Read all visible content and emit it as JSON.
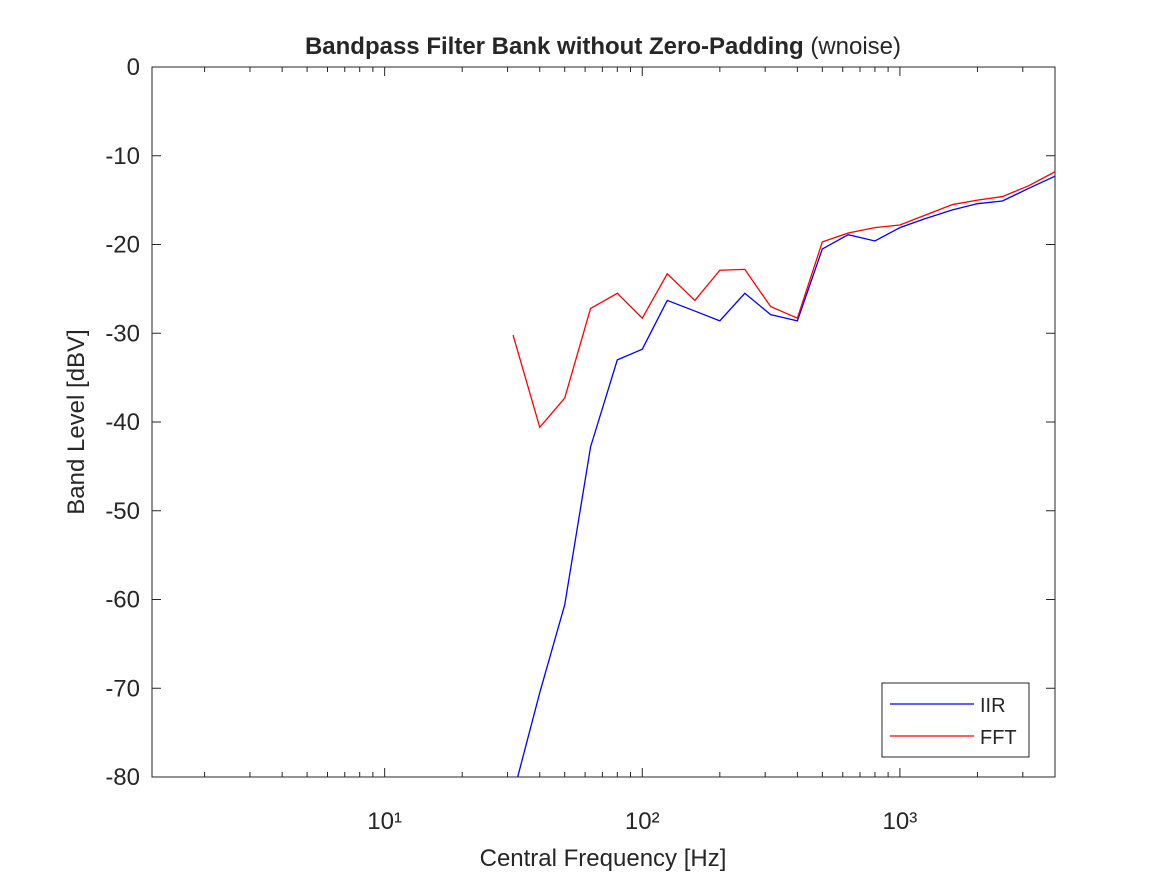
{
  "chart_data": {
    "type": "line",
    "title": "Bandpass Filter Bank without Zero-Padding",
    "title_note": "(wnoise)",
    "xlabel": "Central Frequency [Hz]",
    "ylabel": "Band Level [dBV]",
    "xscale": "log",
    "x_minor_ticks": true,
    "xlim": [
      1.25,
      4000
    ],
    "ylim": [
      -80,
      0
    ],
    "xticks": [
      {
        "value": 10,
        "label": "10¹"
      },
      {
        "value": 100,
        "label": "10²"
      },
      {
        "value": 1000,
        "label": "10³"
      }
    ],
    "yticks": [
      -80,
      -70,
      -60,
      -50,
      -40,
      -30,
      -20,
      -10,
      0
    ],
    "grid": false,
    "legend_position": "southeast",
    "x": [
      31.5,
      40,
      50,
      63,
      80,
      100,
      125,
      160,
      200,
      250,
      315,
      400,
      500,
      630,
      800,
      1000,
      1250,
      1600,
      2000,
      2500,
      3150,
      4000
    ],
    "series": [
      {
        "name": "IIR",
        "color": "#0000ff",
        "values": [
          -82,
          -70.5,
          -60.6,
          -42.8,
          -33.0,
          -31.8,
          -26.3,
          -27.5,
          -28.6,
          -25.5,
          -27.9,
          -28.6,
          -20.5,
          -18.9,
          -19.6,
          -18.1,
          -17.1,
          -16.1,
          -15.4,
          -15.1,
          -13.7,
          -12.3
        ]
      },
      {
        "name": "FFT",
        "color": "#ff0000",
        "values": [
          -30.2,
          -40.6,
          -37.3,
          -27.2,
          -25.5,
          -28.3,
          -23.3,
          -26.3,
          -22.9,
          -22.8,
          -27.0,
          -28.3,
          -19.7,
          -18.7,
          -18.1,
          -17.8,
          -16.7,
          -15.5,
          -15.0,
          -14.6,
          -13.4,
          -11.8
        ]
      }
    ]
  }
}
